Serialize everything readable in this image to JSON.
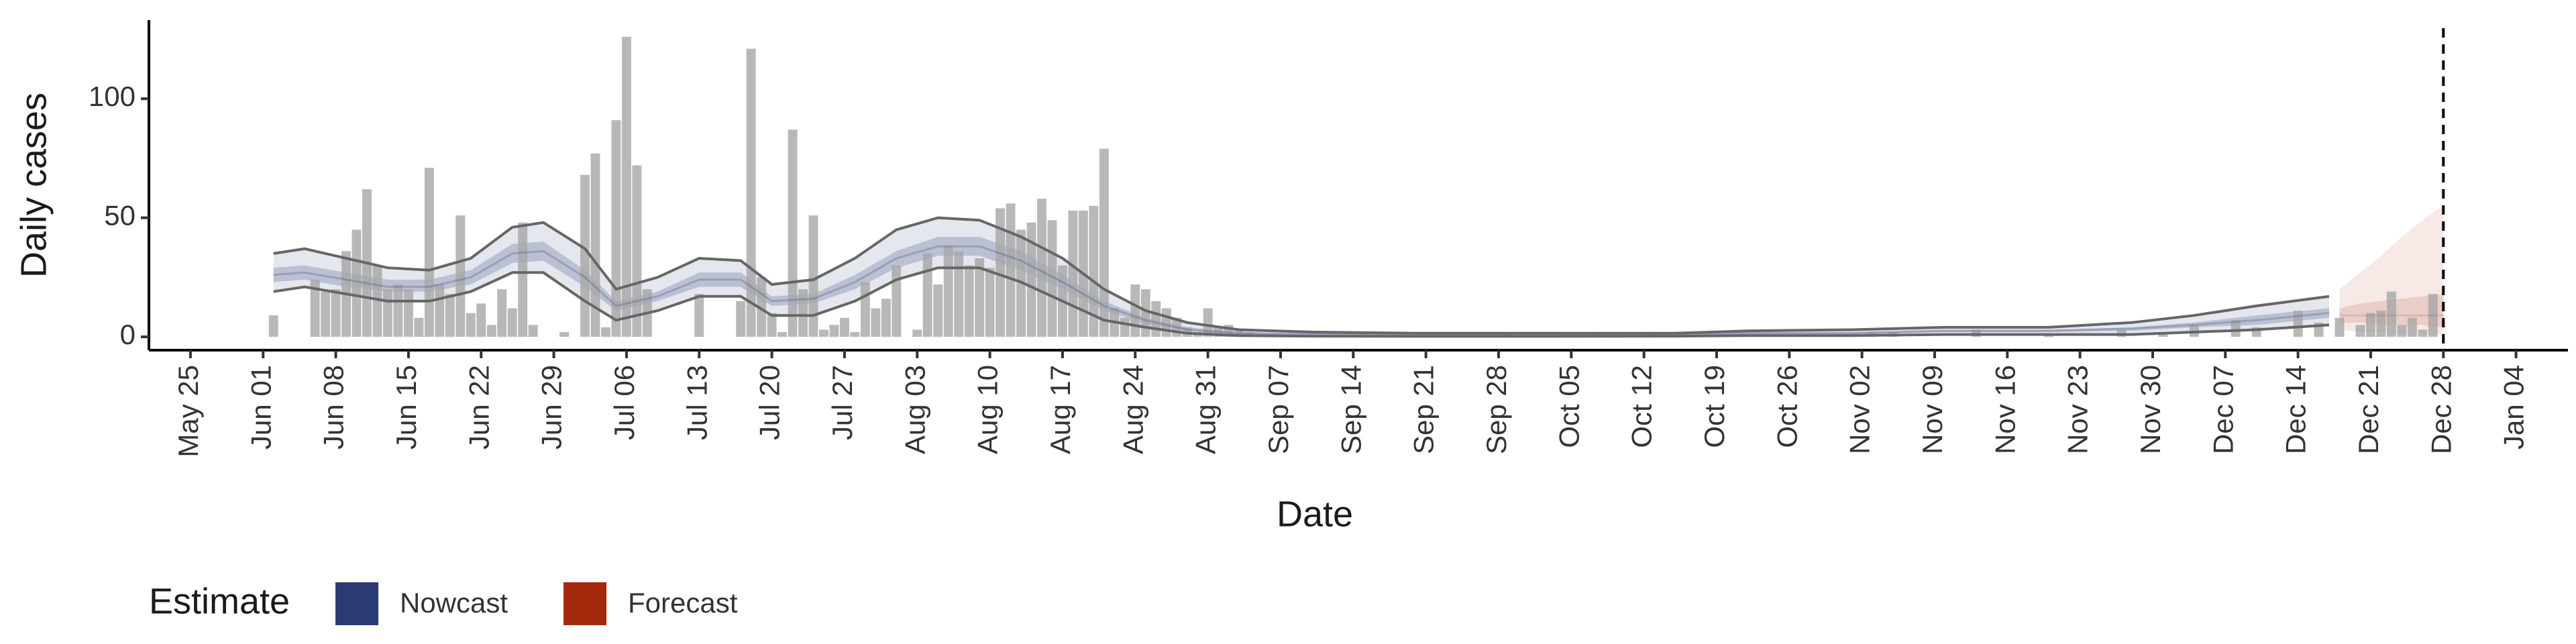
{
  "chart_data": {
    "type": "nowcast",
    "x_label": "Date",
    "y_label": "Daily cases",
    "legend_title": "Estimate",
    "legend_position": "bottom",
    "xlim": [
      "05-21",
      "01-09"
    ],
    "ylim": [
      -5.6,
      133
    ],
    "yticks": [
      0,
      50,
      100
    ],
    "xticks": [
      {
        "value": "05-25",
        "label": "May 25"
      },
      {
        "value": "06-01",
        "label": "Jun 01"
      },
      {
        "value": "06-08",
        "label": "Jun 08"
      },
      {
        "value": "06-15",
        "label": "Jun 15"
      },
      {
        "value": "06-22",
        "label": "Jun 22"
      },
      {
        "value": "06-29",
        "label": "Jun 29"
      },
      {
        "value": "07-06",
        "label": "Jul 06"
      },
      {
        "value": "07-13",
        "label": "Jul 13"
      },
      {
        "value": "07-20",
        "label": "Jul 20"
      },
      {
        "value": "07-27",
        "label": "Jul 27"
      },
      {
        "value": "08-03",
        "label": "Aug 03"
      },
      {
        "value": "08-10",
        "label": "Aug 10"
      },
      {
        "value": "08-17",
        "label": "Aug 17"
      },
      {
        "value": "08-24",
        "label": "Aug 24"
      },
      {
        "value": "08-31",
        "label": "Aug 31"
      },
      {
        "value": "09-07",
        "label": "Sep 07"
      },
      {
        "value": "09-14",
        "label": "Sep 14"
      },
      {
        "value": "09-21",
        "label": "Sep 21"
      },
      {
        "value": "09-28",
        "label": "Sep 28"
      },
      {
        "value": "10-05",
        "label": "Oct 05"
      },
      {
        "value": "10-12",
        "label": "Oct 12"
      },
      {
        "value": "10-19",
        "label": "Oct 19"
      },
      {
        "value": "10-26",
        "label": "Oct 26"
      },
      {
        "value": "11-02",
        "label": "Nov 02"
      },
      {
        "value": "11-09",
        "label": "Nov 09"
      },
      {
        "value": "11-16",
        "label": "Nov 16"
      },
      {
        "value": "11-23",
        "label": "Nov 23"
      },
      {
        "value": "11-30",
        "label": "Nov 30"
      },
      {
        "value": "12-07",
        "label": "Dec 07"
      },
      {
        "value": "12-14",
        "label": "Dec 14"
      },
      {
        "value": "12-21",
        "label": "Dec 21"
      },
      {
        "value": "12-28",
        "label": "Dec 28"
      },
      {
        "value": "01-04",
        "label": "Jan 04"
      }
    ],
    "vline": "12-28",
    "bars": {
      "color": "#a6a6a6",
      "x": [
        "06-02",
        "06-06",
        "06-07",
        "06-08",
        "06-09",
        "06-10",
        "06-11",
        "06-12",
        "06-13",
        "06-14",
        "06-15",
        "06-16",
        "06-17",
        "06-18",
        "06-19",
        "06-20",
        "06-21",
        "06-22",
        "06-23",
        "06-24",
        "06-25",
        "06-26",
        "06-27",
        "06-30",
        "07-02",
        "07-03",
        "07-04",
        "07-05",
        "07-06",
        "07-07",
        "07-08",
        "07-13",
        "07-17",
        "07-18",
        "07-19",
        "07-20",
        "07-21",
        "07-22",
        "07-23",
        "07-24",
        "07-25",
        "07-26",
        "07-27",
        "07-28",
        "07-29",
        "07-30",
        "07-31",
        "08-01",
        "08-03",
        "08-04",
        "08-05",
        "08-06",
        "08-07",
        "08-08",
        "08-09",
        "08-10",
        "08-11",
        "08-12",
        "08-13",
        "08-14",
        "08-15",
        "08-16",
        "08-17",
        "08-18",
        "08-19",
        "08-20",
        "08-21",
        "08-22",
        "08-23",
        "08-24",
        "08-25",
        "08-26",
        "08-27",
        "08-28",
        "08-29",
        "08-30",
        "08-31",
        "09-01",
        "09-02",
        "09-03",
        "09-04",
        "09-05",
        "09-08",
        "09-15",
        "09-29",
        "10-13",
        "10-20",
        "11-03",
        "11-05",
        "11-13",
        "11-20",
        "11-27",
        "12-01",
        "12-04",
        "12-08",
        "12-10",
        "12-14",
        "12-16",
        "12-18",
        "12-20",
        "12-21",
        "12-22",
        "12-23",
        "12-24",
        "12-25",
        "12-26",
        "12-27"
      ],
      "values": [
        9,
        24,
        19,
        20,
        36,
        45,
        62,
        30,
        20,
        22,
        20,
        8,
        71,
        22,
        18,
        51,
        10,
        14,
        5,
        20,
        12,
        48,
        5,
        2,
        68,
        77,
        4,
        91,
        126,
        72,
        20,
        18,
        15,
        121,
        25,
        10,
        2,
        87,
        20,
        51,
        3,
        5,
        8,
        2,
        23,
        12,
        16,
        30,
        3,
        35,
        22,
        38,
        36,
        30,
        33,
        29,
        54,
        56,
        45,
        48,
        58,
        49,
        30,
        53,
        53,
        55,
        79,
        12,
        8,
        22,
        20,
        15,
        12,
        8,
        4,
        2,
        12,
        4,
        5,
        3,
        2,
        1,
        1,
        1,
        1,
        1,
        1,
        2,
        2,
        3,
        1,
        3,
        2,
        5,
        7,
        4,
        11,
        6,
        8,
        5,
        10,
        11,
        19,
        5,
        8,
        3,
        18
      ]
    },
    "series": [
      {
        "name": "Nowcast",
        "color": "#2b3a73",
        "outline_color": "#666666",
        "x": [
          "06-02",
          "06-05",
          "06-09",
          "06-13",
          "06-17",
          "06-21",
          "06-25",
          "06-28",
          "07-02",
          "07-05",
          "07-09",
          "07-13",
          "07-17",
          "07-20",
          "07-24",
          "07-28",
          "08-01",
          "08-05",
          "08-09",
          "08-13",
          "08-17",
          "08-21",
          "08-25",
          "08-29",
          "09-03",
          "09-10",
          "09-20",
          "10-01",
          "10-15",
          "10-22",
          "11-01",
          "11-10",
          "11-20",
          "11-28",
          "12-04",
          "12-10",
          "12-17"
        ],
        "upper_90": [
          35,
          37,
          33,
          29,
          28,
          33,
          46,
          48,
          37,
          20,
          25,
          33,
          32,
          22,
          24,
          33,
          45,
          50,
          49,
          42,
          33,
          20,
          11,
          6,
          3,
          2,
          1.5,
          1.5,
          1.5,
          2.5,
          3,
          4,
          4,
          6,
          9,
          13,
          17
        ],
        "upper_50": [
          29,
          30,
          27,
          24,
          24,
          28,
          39,
          40,
          28,
          15,
          19,
          27,
          27,
          17,
          18,
          26,
          36,
          42,
          42,
          36,
          26,
          15,
          8,
          4,
          2,
          1.5,
          1,
          1,
          1,
          2,
          2,
          3,
          3,
          4,
          6,
          9,
          12
        ],
        "median": [
          26,
          27,
          24,
          21,
          21,
          25,
          35,
          36,
          25,
          13,
          17,
          24,
          24,
          15,
          16,
          23,
          33,
          38,
          38,
          32,
          23,
          13,
          7,
          3,
          1.5,
          1,
          0.8,
          0.8,
          0.8,
          1.5,
          1.5,
          2.5,
          2.5,
          3.5,
          5,
          7,
          10
        ],
        "lower_50": [
          23,
          24,
          21,
          19,
          19,
          22,
          31,
          32,
          21,
          11,
          15,
          21,
          21,
          13,
          14,
          20,
          29,
          34,
          34,
          28,
          20,
          11,
          5.5,
          2.5,
          1,
          0.8,
          0.5,
          0.5,
          0.5,
          1,
          1,
          2,
          2,
          2.5,
          4,
          5,
          8
        ],
        "lower_90": [
          19,
          21,
          18,
          15,
          15,
          19,
          27,
          27,
          15,
          7,
          11,
          17,
          17,
          9,
          9,
          15,
          24,
          29,
          29,
          23,
          15,
          7,
          4,
          1.5,
          0.5,
          0.3,
          0.2,
          0.2,
          0.3,
          0.5,
          0.5,
          1,
          1,
          1,
          2,
          3,
          5
        ]
      },
      {
        "name": "Forecast",
        "color": "#a52a0d",
        "x": [
          "12-18",
          "12-20",
          "12-22",
          "12-24",
          "12-26",
          "12-28"
        ],
        "upper_90": [
          20,
          27,
          34,
          42,
          49,
          55
        ],
        "upper_50": [
          12,
          14,
          15,
          16,
          17,
          18
        ],
        "median": [
          9,
          9,
          9,
          9,
          9,
          9
        ],
        "lower_50": [
          6,
          6,
          5,
          5,
          5,
          4
        ],
        "lower_90": [
          3,
          2,
          2,
          1,
          1,
          1
        ]
      }
    ]
  }
}
